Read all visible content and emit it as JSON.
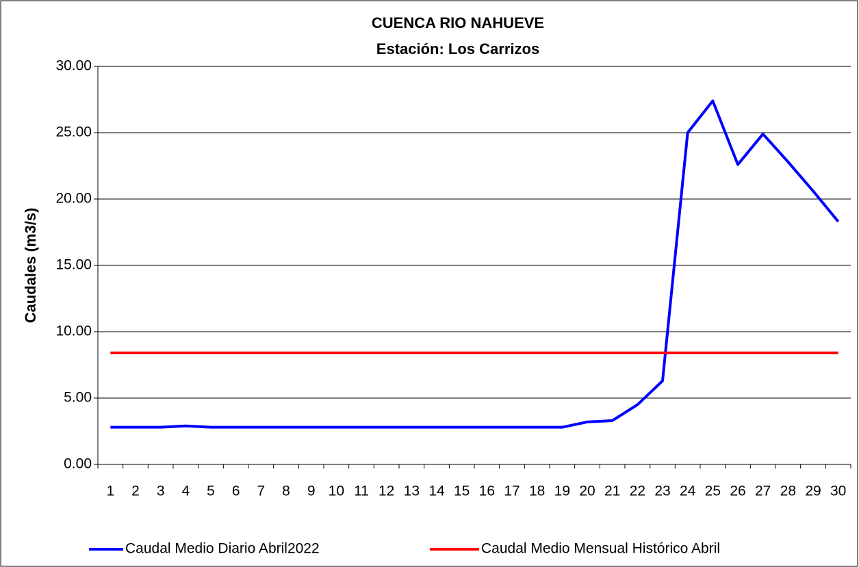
{
  "chart_data": {
    "type": "line",
    "title": "CUENCA RIO NAHUEVE",
    "subtitle": "Estación: Los Carrizos",
    "y_label": "Caudales (m3/s)",
    "categories": [
      "1",
      "2",
      "3",
      "4",
      "5",
      "6",
      "7",
      "8",
      "9",
      "10",
      "11",
      "12",
      "13",
      "14",
      "15",
      "16",
      "17",
      "18",
      "19",
      "20",
      "21",
      "22",
      "23",
      "24",
      "25",
      "26",
      "27",
      "28",
      "29",
      "30"
    ],
    "series": [
      {
        "name": "Caudal Medio Diario Abril2022",
        "color": "#0000ff",
        "values": [
          2.8,
          2.8,
          2.8,
          2.9,
          2.8,
          2.8,
          2.8,
          2.8,
          2.8,
          2.8,
          2.8,
          2.8,
          2.8,
          2.8,
          2.8,
          2.8,
          2.8,
          2.8,
          2.8,
          3.2,
          3.3,
          4.5,
          6.3,
          25.0,
          27.4,
          22.6,
          24.9,
          22.8,
          20.6,
          18.3
        ]
      },
      {
        "name": "Caudal Medio Mensual Histórico Abril",
        "color": "#ff0000",
        "values": [
          8.4,
          8.4,
          8.4,
          8.4,
          8.4,
          8.4,
          8.4,
          8.4,
          8.4,
          8.4,
          8.4,
          8.4,
          8.4,
          8.4,
          8.4,
          8.4,
          8.4,
          8.4,
          8.4,
          8.4,
          8.4,
          8.4,
          8.4,
          8.4,
          8.4,
          8.4,
          8.4,
          8.4,
          8.4,
          8.4
        ]
      }
    ],
    "ylim": [
      0,
      30
    ],
    "yticks": [
      {
        "value": 0,
        "label": "0.00"
      },
      {
        "value": 5,
        "label": "5.00"
      },
      {
        "value": 10,
        "label": "10.00"
      },
      {
        "value": 15,
        "label": "15.00"
      },
      {
        "value": 20,
        "label": "20.00"
      },
      {
        "value": 25,
        "label": "25.00"
      },
      {
        "value": 30,
        "label": "30.00"
      }
    ],
    "grid": true,
    "legend": "bottom"
  }
}
